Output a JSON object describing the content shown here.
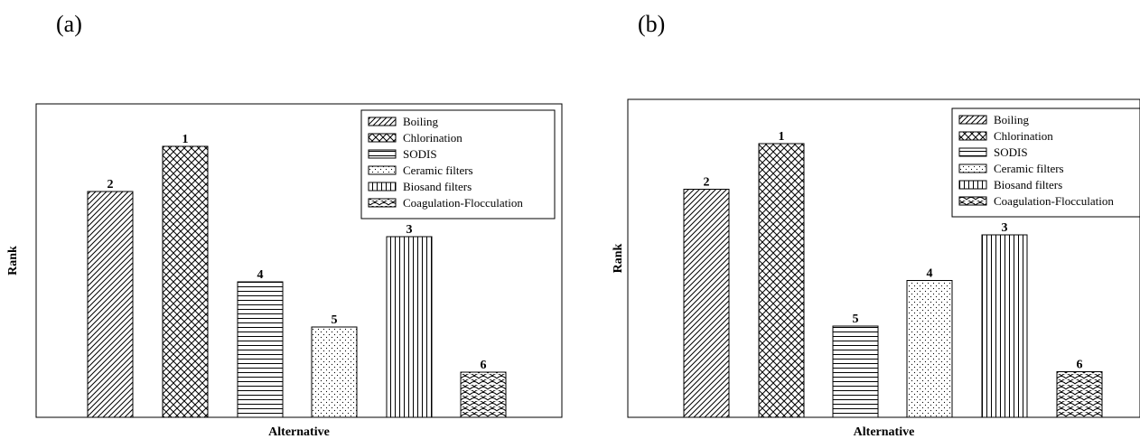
{
  "panels": {
    "a": "(a)",
    "b": "(b)"
  },
  "patterns": {
    "Boiling": "diagonal-hatch",
    "Chlorination": "cross-hatch",
    "SODIS": "horizontal-lines",
    "Ceramic filters": "dots",
    "Biosand filters": "vertical-lines",
    "Coagulation-Flocculation": "scales"
  },
  "chart_data": [
    {
      "type": "bar",
      "panel": "(a)",
      "xlabel": "Alternative",
      "ylabel": "Rank",
      "categories": [
        "Boiling",
        "Chlorination",
        "SODIS",
        "Ceramic filters",
        "Biosand filters",
        "Coagulation-Flocculation"
      ],
      "values": [
        2,
        1,
        4,
        5,
        3,
        6
      ],
      "legend": [
        "Boiling",
        "Chlorination",
        "SODIS",
        "Ceramic filters",
        "Biosand filters",
        "Coagulation-Flocculation"
      ],
      "legend_position": "top-right",
      "grid": false
    },
    {
      "type": "bar",
      "panel": "(b)",
      "xlabel": "Alternative",
      "ylabel": "Rank",
      "categories": [
        "Boiling",
        "Chlorination",
        "SODIS",
        "Ceramic filters",
        "Biosand filters",
        "Coagulation-Flocculation"
      ],
      "values": [
        2,
        1,
        5,
        4,
        3,
        6
      ],
      "legend": [
        "Boiling",
        "Chlorination",
        "SODIS",
        "Ceramic filters",
        "Biosand filters",
        "Coagulation-Flocculation"
      ],
      "legend_position": "top-right",
      "grid": false
    }
  ]
}
